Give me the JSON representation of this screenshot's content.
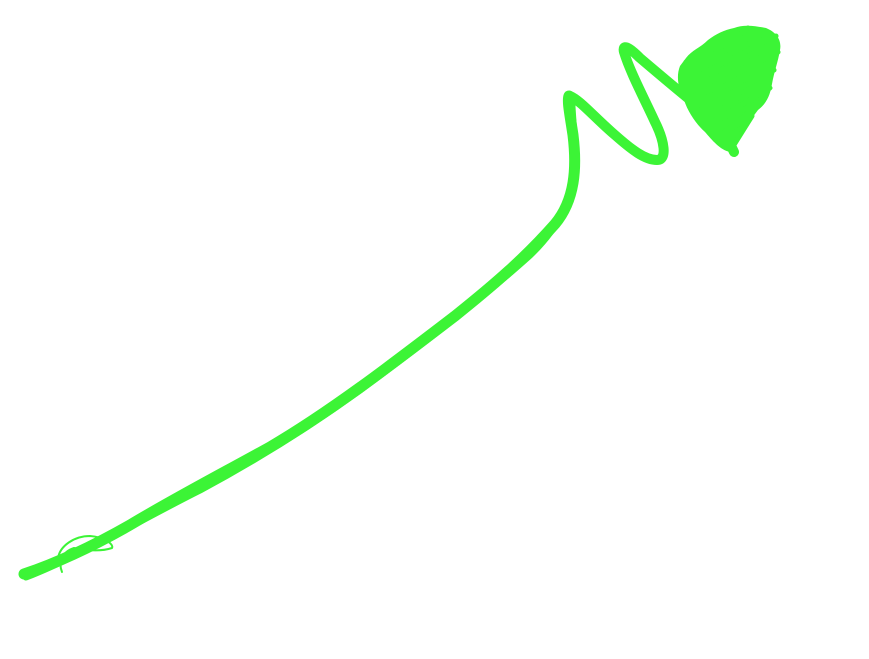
{
  "canvas": {
    "background": "#ffffff"
  },
  "stroke": {
    "color": "#3cf436",
    "shape": "freehand-line-with-zigzag-and-scribble"
  }
}
